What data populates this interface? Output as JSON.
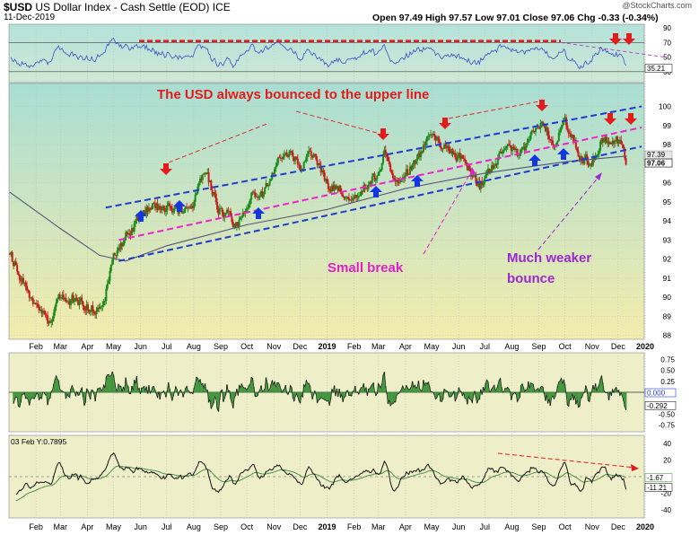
{
  "header": {
    "symbol": "$USD",
    "name": "US Dollar Index - Cash Settle (EOD)",
    "exchange": "ICE",
    "date": "11-Dec-2019",
    "watermark": "@StockCharts.com",
    "ohlc": "Open 97.49  High 97.57  Low 97.01  Close 97.06  Chg -0.33 (-0.34%)"
  },
  "colors": {
    "price_panel_bg_top": "#a9ded3",
    "price_panel_bg_bottom": "#f3ecad",
    "lower_panel_bg": "#eeeec9",
    "up_candle": "#1a8c1a",
    "down_candle": "#c91d1d",
    "channel_blue": "#1f3ad0",
    "midline_magenta": "#ee22cc",
    "annotation_red": "#e41b1b",
    "annotation_magenta": "#e020c8",
    "annotation_purple": "#9a2ad0",
    "arrow_blue": "#1436e0",
    "ma_line": "#555577"
  },
  "chart_data": [
    {
      "type": "line",
      "panel": "RSI",
      "yticks": [
        "90",
        "70",
        "50",
        "30"
      ],
      "last_value": "35.21",
      "levels": [
        70,
        30
      ],
      "ylim": [
        15,
        95
      ]
    },
    {
      "type": "candlestick",
      "panel": "price",
      "title": "US Dollar Index - Cash Settle (EOD)",
      "x_ticks": [
        "Feb",
        "Mar",
        "Apr",
        "May",
        "Jun",
        "Jul",
        "Aug",
        "Sep",
        "Oct",
        "Nov",
        "Dec",
        "2019",
        "Feb",
        "Mar",
        "Apr",
        "May",
        "Jun",
        "Jul",
        "Aug",
        "Sep",
        "Oct",
        "Nov",
        "Dec",
        "2020"
      ],
      "yticks": [
        "100",
        "99",
        "98",
        "97",
        "96",
        "95",
        "94",
        "93",
        "92",
        "91",
        "90",
        "89",
        "88"
      ],
      "ylim": [
        87.8,
        101.2
      ],
      "last_labels": [
        "97.39",
        "97.06"
      ],
      "path_points": [
        {
          "x": "2018-01-02",
          "y": 92.3
        },
        {
          "x": "2018-01-20",
          "y": 90.5
        },
        {
          "x": "2018-02-05",
          "y": 89.4
        },
        {
          "x": "2018-02-16",
          "y": 88.6
        },
        {
          "x": "2018-03-01",
          "y": 90.1
        },
        {
          "x": "2018-03-16",
          "y": 89.8
        },
        {
          "x": "2018-04-01",
          "y": 89.6
        },
        {
          "x": "2018-04-17",
          "y": 89.3
        },
        {
          "x": "2018-05-01",
          "y": 91.9
        },
        {
          "x": "2018-05-15",
          "y": 93.3
        },
        {
          "x": "2018-05-30",
          "y": 94.0
        },
        {
          "x": "2018-06-15",
          "y": 95.0
        },
        {
          "x": "2018-06-28",
          "y": 94.5
        },
        {
          "x": "2018-07-13",
          "y": 94.7
        },
        {
          "x": "2018-07-30",
          "y": 94.4
        },
        {
          "x": "2018-08-14",
          "y": 96.7
        },
        {
          "x": "2018-08-28",
          "y": 94.8
        },
        {
          "x": "2018-09-20",
          "y": 93.8
        },
        {
          "x": "2018-10-05",
          "y": 95.5
        },
        {
          "x": "2018-10-20",
          "y": 95.4
        },
        {
          "x": "2018-11-12",
          "y": 97.6
        },
        {
          "x": "2018-12-01",
          "y": 96.9
        },
        {
          "x": "2018-12-14",
          "y": 97.5
        },
        {
          "x": "2019-01-03",
          "y": 95.9
        },
        {
          "x": "2019-01-31",
          "y": 95.3
        },
        {
          "x": "2019-02-28",
          "y": 96.3
        },
        {
          "x": "2019-03-08",
          "y": 97.6
        },
        {
          "x": "2019-03-20",
          "y": 95.8
        },
        {
          "x": "2019-04-10",
          "y": 97.0
        },
        {
          "x": "2019-04-26",
          "y": 98.2
        },
        {
          "x": "2019-05-23",
          "y": 97.9
        },
        {
          "x": "2019-06-10",
          "y": 96.9
        },
        {
          "x": "2019-06-25",
          "y": 95.8
        },
        {
          "x": "2019-07-10",
          "y": 97.0
        },
        {
          "x": "2019-07-25",
          "y": 97.8
        },
        {
          "x": "2019-08-10",
          "y": 97.5
        },
        {
          "x": "2019-09-03",
          "y": 99.1
        },
        {
          "x": "2019-09-20",
          "y": 98.2
        },
        {
          "x": "2019-10-01",
          "y": 99.4
        },
        {
          "x": "2019-10-18",
          "y": 97.4
        },
        {
          "x": "2019-11-01",
          "y": 97.1
        },
        {
          "x": "2019-11-12",
          "y": 98.2
        },
        {
          "x": "2019-11-29",
          "y": 98.3
        },
        {
          "x": "2019-12-11",
          "y": 97.06
        }
      ],
      "moving_average": [
        {
          "x": "2018-01-02",
          "y": 95.5
        },
        {
          "x": "2018-03-01",
          "y": 93.6
        },
        {
          "x": "2018-04-15",
          "y": 92.2
        },
        {
          "x": "2018-05-15",
          "y": 91.9
        },
        {
          "x": "2018-07-01",
          "y": 92.7
        },
        {
          "x": "2018-10-01",
          "y": 93.8
        },
        {
          "x": "2019-01-01",
          "y": 94.6
        },
        {
          "x": "2019-04-01",
          "y": 95.7
        },
        {
          "x": "2019-07-01",
          "y": 96.5
        },
        {
          "x": "2019-10-01",
          "y": 97.1
        },
        {
          "x": "2019-12-11",
          "y": 97.4
        }
      ],
      "channel_upper": [
        {
          "x": "2018-04-22",
          "y": 94.7
        },
        {
          "x": "2019-12-28",
          "y": 100.0
        }
      ],
      "channel_mid": [
        {
          "x": "2018-05-07",
          "y": 93.0
        },
        {
          "x": "2019-12-28",
          "y": 98.9
        }
      ],
      "channel_lower": [
        {
          "x": "2018-05-07",
          "y": 91.9
        },
        {
          "x": "2019-12-28",
          "y": 97.9
        }
      ],
      "annotations": [
        {
          "text": "The USD always bounced to the upper line"
        },
        {
          "text": "Small break"
        },
        {
          "text": "Much weaker bounce"
        }
      ]
    },
    {
      "type": "histogram",
      "panel": "momentum",
      "yticks": [
        "0.75",
        "0.50",
        "0.25",
        "0.000",
        "-0.292",
        "-0.50",
        "-0.75"
      ],
      "last_labels": [
        "0.000",
        "-0.292"
      ],
      "ylim": [
        -0.9,
        0.9
      ]
    },
    {
      "type": "line",
      "panel": "oscillator",
      "label": "03 Feb Y:0.7895",
      "yticks": [
        "40",
        "20",
        "0",
        "-20",
        "-40"
      ],
      "last_labels": [
        "-1.67",
        "-11.21"
      ],
      "ylim": [
        -50,
        50
      ],
      "x_ticks": [
        "Feb",
        "Mar",
        "Apr",
        "May",
        "Jun",
        "Jul",
        "Aug",
        "Sep",
        "Oct",
        "Nov",
        "Dec",
        "2019",
        "Feb",
        "Mar",
        "Apr",
        "May",
        "Jun",
        "Jul",
        "Aug",
        "Sep",
        "Oct",
        "Nov",
        "Dec",
        "2020"
      ]
    }
  ]
}
